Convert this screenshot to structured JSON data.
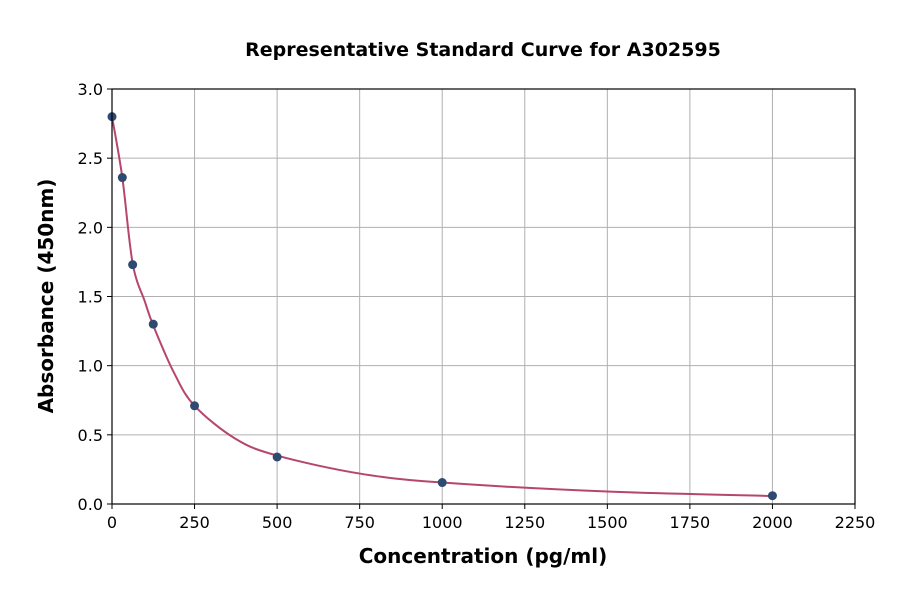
{
  "chart_data": {
    "type": "scatter",
    "title": "Representative Standard Curve for A302595",
    "xlabel": "Concentration (pg/ml)",
    "ylabel": "Absorbance (450nm)",
    "xlim": [
      0,
      2250
    ],
    "ylim": [
      0,
      3.0
    ],
    "xticks": [
      0,
      250,
      500,
      750,
      1000,
      1250,
      1500,
      1750,
      2000,
      2250
    ],
    "yticks": [
      "0.0",
      "0.5",
      "1.0",
      "1.5",
      "2.0",
      "2.5",
      "3.0"
    ],
    "grid": true,
    "points": {
      "x": [
        0,
        31.25,
        62.5,
        125,
        250,
        500,
        1000,
        2000
      ],
      "y": [
        2.8,
        2.36,
        1.73,
        1.3,
        0.71,
        0.34,
        0.155,
        0.06
      ],
      "color": "#2e4a70"
    },
    "fit_curve": {
      "x": [
        0,
        31.25,
        62.5,
        100,
        125,
        187.5,
        250,
        375,
        500,
        750,
        1000,
        1500,
        2000
      ],
      "y": [
        2.8,
        2.36,
        1.74,
        1.46,
        1.29,
        0.95,
        0.71,
        0.47,
        0.35,
        0.22,
        0.155,
        0.09,
        0.058
      ],
      "color": "#b5466e"
    }
  }
}
